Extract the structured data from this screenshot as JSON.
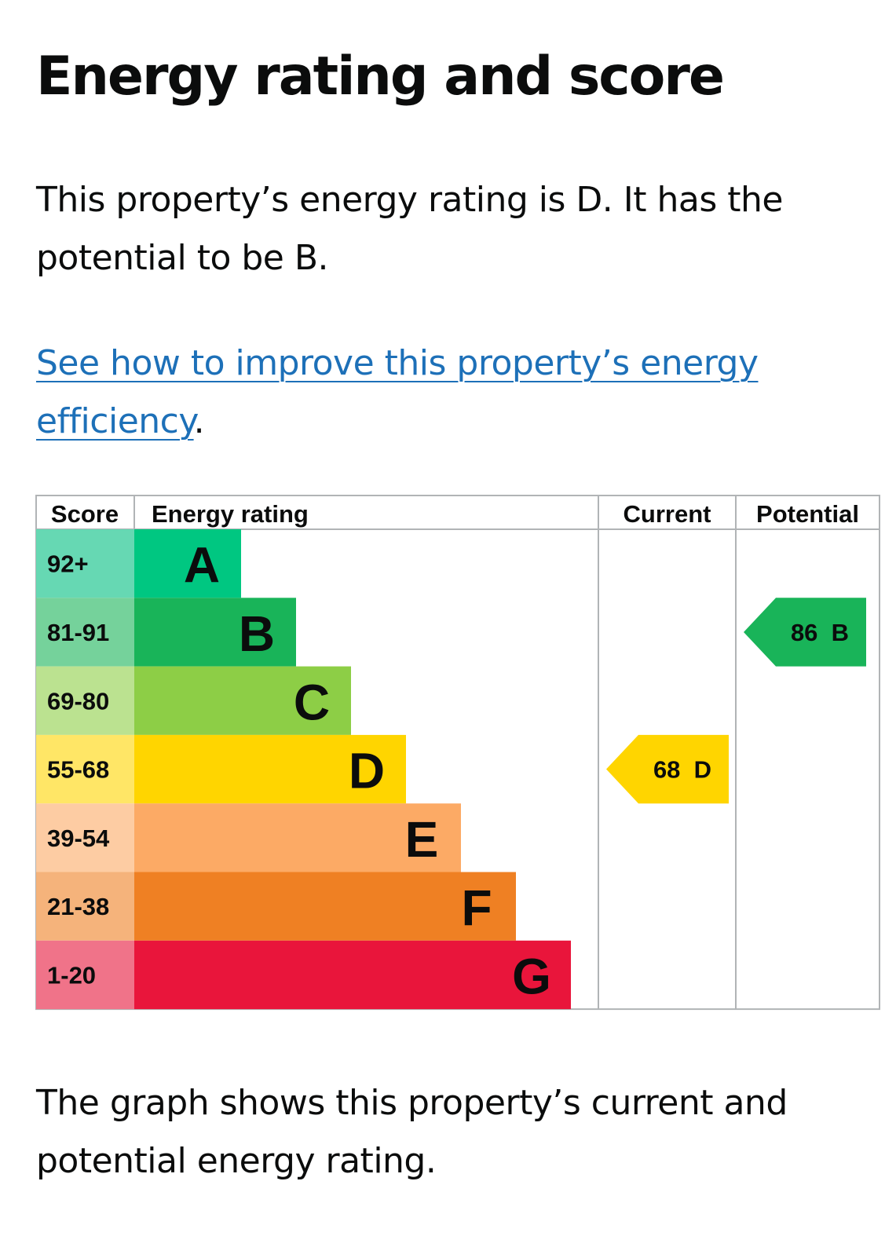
{
  "page": {
    "title": "Energy rating and score",
    "summary": "This property’s energy rating is D. It has the potential to be B.",
    "improve_link": "See how to improve this property’s energy efficiency",
    "improve_suffix": ".",
    "caption": "The graph shows this property’s current and potential energy rating."
  },
  "chart_data": {
    "type": "bar",
    "headers": {
      "score": "Score",
      "rating": "Energy rating",
      "current": "Current",
      "potential": "Potential"
    },
    "bands": [
      {
        "letter": "A",
        "range": "92+",
        "color": "#00c781",
        "score_bg": "#66d8b3"
      },
      {
        "letter": "B",
        "range": "81-91",
        "color": "#19b459",
        "score_bg": "#75d29b"
      },
      {
        "letter": "C",
        "range": "69-80",
        "color": "#8dce46",
        "score_bg": "#bbe290"
      },
      {
        "letter": "D",
        "range": "55-68",
        "color": "#ffd500",
        "score_bg": "#ffe666"
      },
      {
        "letter": "E",
        "range": "39-54",
        "color": "#fcaa65",
        "score_bg": "#fdcca3"
      },
      {
        "letter": "F",
        "range": "21-38",
        "color": "#ef8023",
        "score_bg": "#f5b37b"
      },
      {
        "letter": "G",
        "range": "1-20",
        "color": "#e9153b",
        "score_bg": "#f07389"
      }
    ],
    "current": {
      "score": 68,
      "band": "D",
      "label": "68  D",
      "color": "#ffd500"
    },
    "potential": {
      "score": 86,
      "band": "B",
      "label": "86  B",
      "color": "#19b459"
    }
  }
}
